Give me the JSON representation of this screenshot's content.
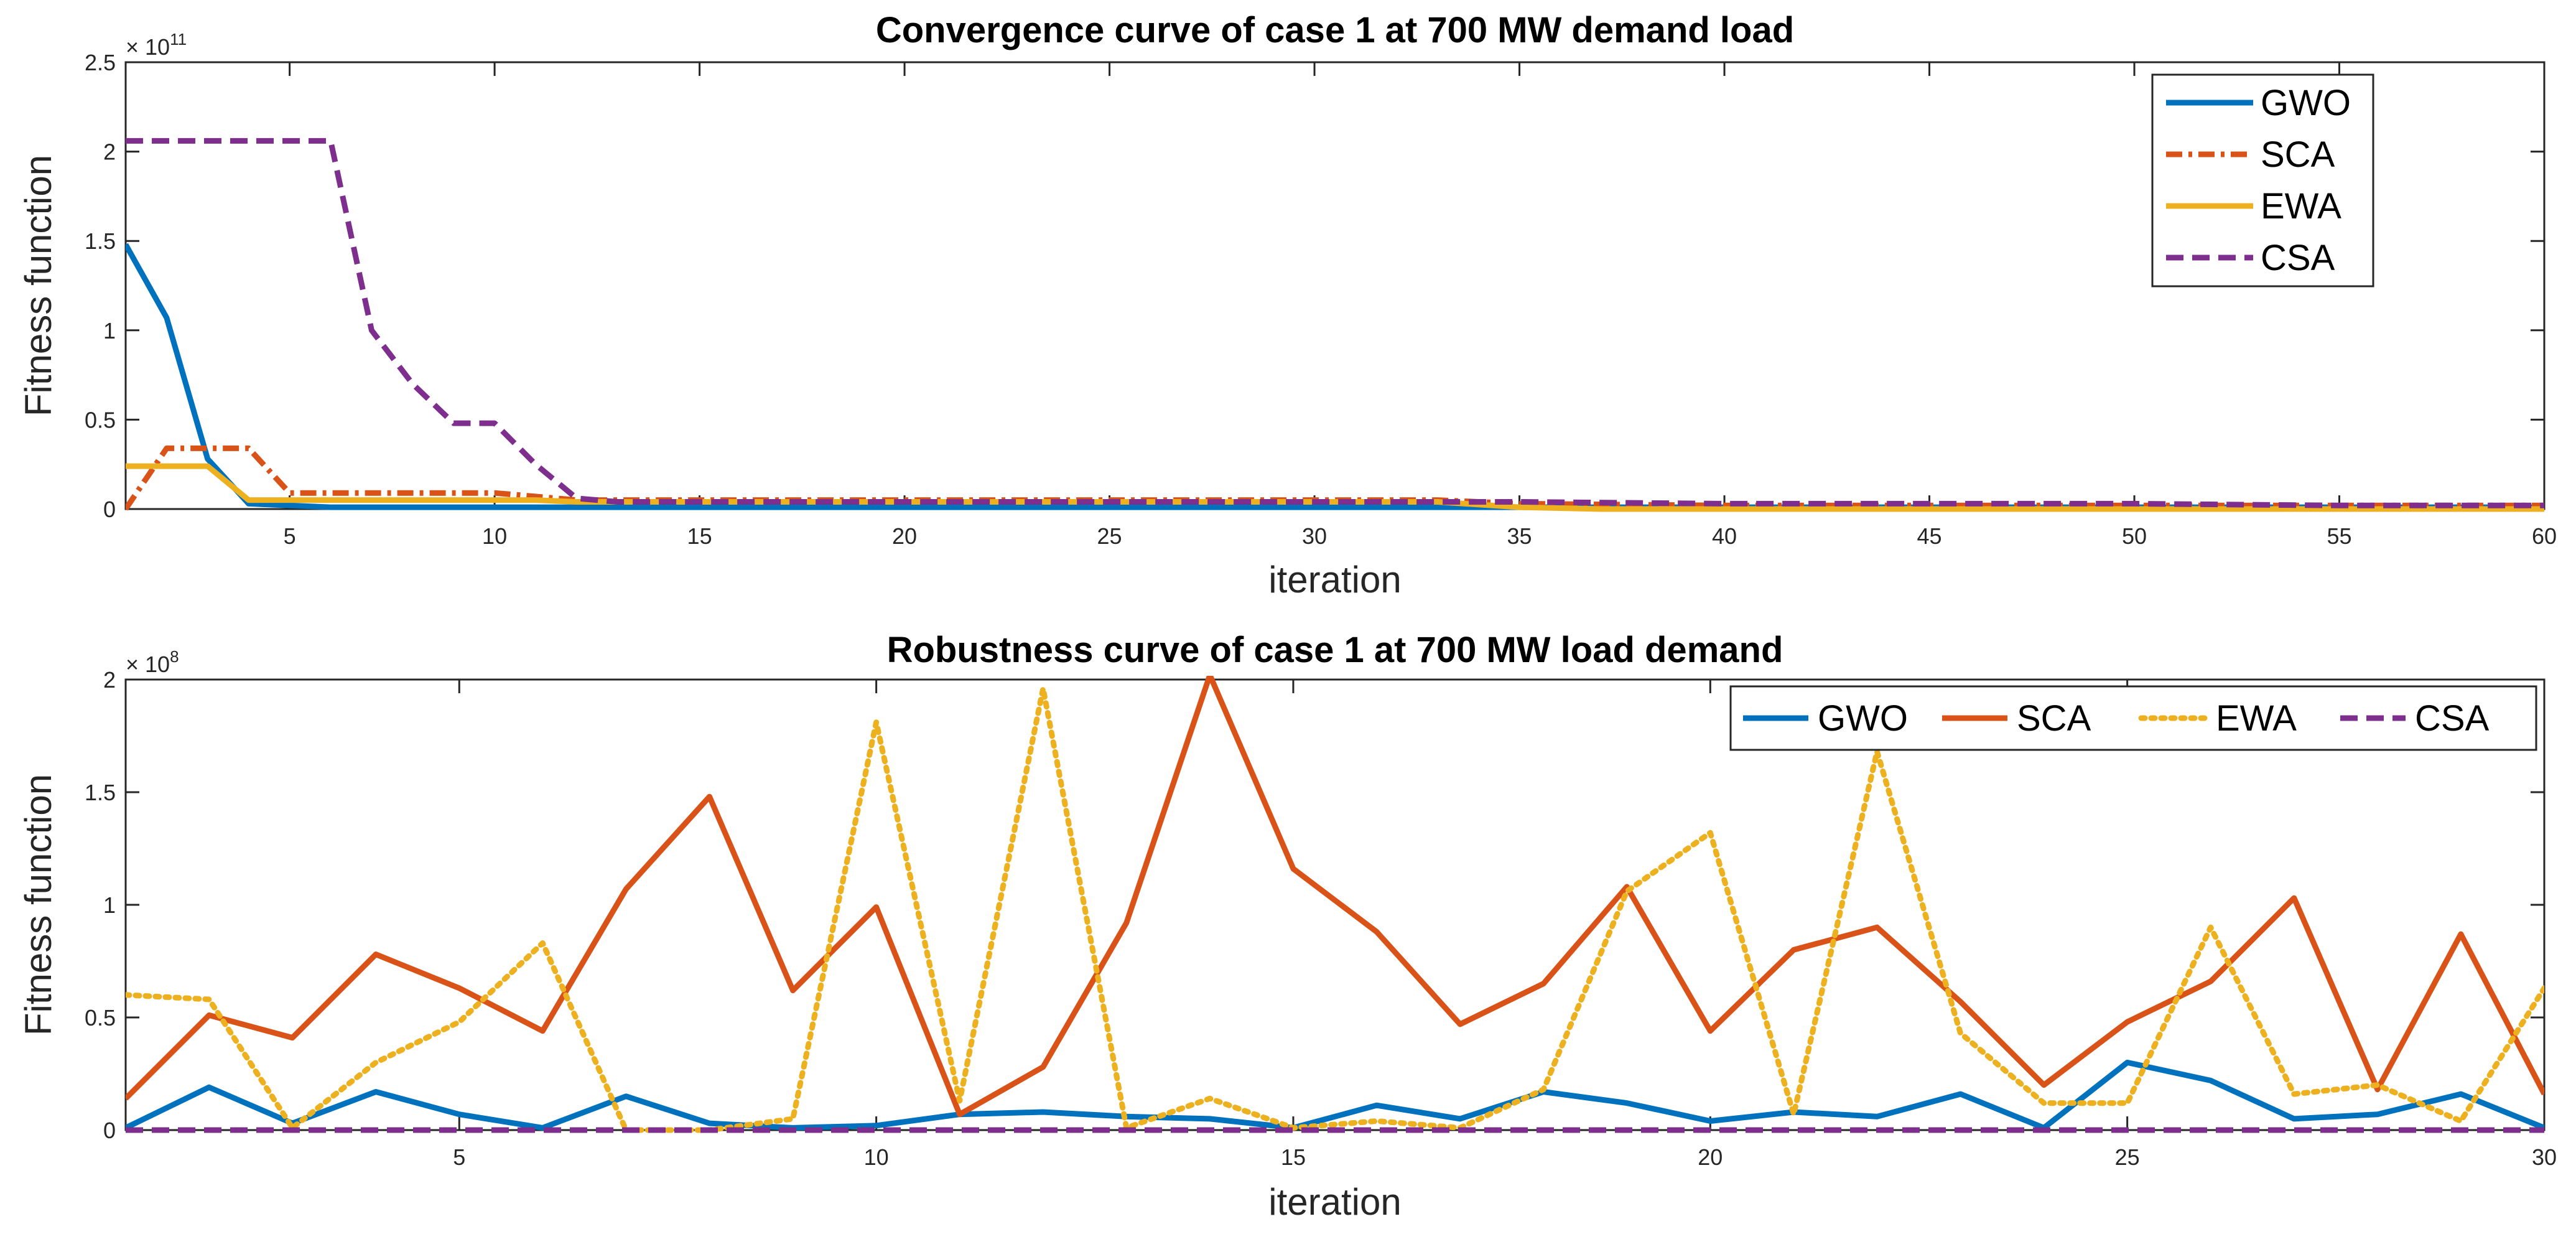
{
  "chart_data": [
    {
      "type": "line",
      "title": "Convergence curve of case 1 at 700 MW demand load",
      "xlabel": "iteration",
      "ylabel": "Fitness function",
      "exponent_base": "× 10",
      "exponent_power": "11",
      "xlim": [
        1,
        60
      ],
      "ylim": [
        0,
        2.5
      ],
      "xticks": [
        5,
        10,
        15,
        20,
        25,
        30,
        35,
        40,
        45,
        50,
        55,
        60
      ],
      "yticks": [
        0,
        0.5,
        1,
        1.5,
        2,
        2.5
      ],
      "ytick_labels": [
        "0",
        "0.5",
        "1",
        "1.5",
        "2",
        "2.5"
      ],
      "legend_position": "top-right",
      "legend_layout": "vertical",
      "series": [
        {
          "name": "GWO",
          "color": "#0072BD",
          "style": "solid",
          "x": [
            1,
            2,
            3,
            4,
            5,
            6,
            7,
            8,
            10,
            15,
            20,
            25,
            30,
            35,
            40,
            45,
            50,
            55,
            60
          ],
          "y": [
            1.48,
            1.07,
            0.28,
            0.03,
            0.02,
            0.01,
            0.01,
            0.01,
            0.01,
            0.01,
            0.01,
            0.01,
            0.01,
            0.01,
            0.01,
            0.01,
            0.01,
            0.01,
            0.01
          ]
        },
        {
          "name": "SCA",
          "color": "#D95319",
          "style": "dashdot",
          "x": [
            1,
            2,
            3,
            4,
            5,
            6,
            8,
            10,
            11,
            12,
            20,
            30,
            33,
            35,
            40,
            50,
            60
          ],
          "y": [
            0,
            0.34,
            0.34,
            0.34,
            0.09,
            0.09,
            0.09,
            0.09,
            0.07,
            0.05,
            0.05,
            0.05,
            0.05,
            0.03,
            0.02,
            0.02,
            0.02
          ]
        },
        {
          "name": "EWA",
          "color": "#EDB120",
          "style": "solid",
          "x": [
            1,
            2,
            3,
            4,
            5,
            10,
            11,
            12,
            20,
            30,
            33,
            35,
            37,
            40,
            50,
            60
          ],
          "y": [
            0.24,
            0.24,
            0.24,
            0.05,
            0.05,
            0.05,
            0.05,
            0.04,
            0.04,
            0.04,
            0.04,
            0.01,
            0,
            0,
            0,
            0
          ]
        },
        {
          "name": "CSA",
          "color": "#7E2F8E",
          "style": "dashed",
          "x": [
            1,
            2,
            3,
            4,
            5,
            6,
            7,
            8,
            9,
            10,
            11,
            12,
            13,
            20,
            30,
            33,
            35,
            40,
            50,
            55,
            60
          ],
          "y": [
            2.06,
            2.06,
            2.06,
            2.06,
            2.06,
            2.06,
            1.0,
            0.7,
            0.48,
            0.48,
            0.25,
            0.06,
            0.04,
            0.04,
            0.04,
            0.04,
            0.04,
            0.03,
            0.03,
            0.02,
            0.02
          ]
        }
      ]
    },
    {
      "type": "line",
      "title": "Robustness curve of case 1 at 700 MW load demand",
      "xlabel": "iteration",
      "ylabel": "Fitness function",
      "exponent_base": "× 10",
      "exponent_power": "8",
      "xlim": [
        1,
        30
      ],
      "ylim": [
        0,
        2
      ],
      "xticks": [
        5,
        10,
        15,
        20,
        25,
        30
      ],
      "yticks": [
        0,
        0.5,
        1,
        1.5,
        2
      ],
      "ytick_labels": [
        "0",
        "0.5",
        "1",
        "1.5",
        "2"
      ],
      "legend_position": "top-right",
      "legend_layout": "horizontal",
      "series": [
        {
          "name": "GWO",
          "color": "#0072BD",
          "style": "solid",
          "x": [
            1,
            2,
            3,
            4,
            5,
            6,
            7,
            8,
            9,
            10,
            11,
            12,
            13,
            14,
            15,
            16,
            17,
            18,
            19,
            20,
            21,
            22,
            23,
            24,
            25,
            26,
            27,
            28,
            29,
            30
          ],
          "y": [
            0.01,
            0.19,
            0.03,
            0.17,
            0.07,
            0.01,
            0.15,
            0.03,
            0.01,
            0.02,
            0.07,
            0.08,
            0.06,
            0.05,
            0.01,
            0.11,
            0.05,
            0.17,
            0.12,
            0.04,
            0.08,
            0.06,
            0.16,
            0.01,
            0.3,
            0.22,
            0.05,
            0.07,
            0.16,
            0.01
          ]
        },
        {
          "name": "SCA",
          "color": "#D95319",
          "style": "solid",
          "x": [
            1,
            2,
            3,
            4,
            5,
            6,
            7,
            8,
            9,
            10,
            11,
            12,
            13,
            14,
            15,
            16,
            17,
            18,
            19,
            20,
            21,
            22,
            23,
            24,
            25,
            26,
            27,
            28,
            29,
            30
          ],
          "y": [
            0.14,
            0.51,
            0.41,
            0.78,
            0.63,
            0.44,
            1.07,
            1.48,
            0.62,
            0.99,
            0.07,
            0.28,
            0.92,
            2.02,
            1.16,
            0.88,
            0.47,
            0.65,
            1.08,
            0.44,
            0.8,
            0.9,
            0.57,
            0.2,
            0.48,
            0.66,
            1.03,
            0.18,
            0.87,
            0.16
          ]
        },
        {
          "name": "EWA",
          "color": "#EDB120",
          "style": "dotted",
          "x": [
            1,
            2,
            3,
            4,
            5,
            6,
            7,
            8,
            9,
            10,
            11,
            12,
            13,
            14,
            15,
            16,
            17,
            18,
            19,
            20,
            21,
            22,
            23,
            24,
            25,
            26,
            27,
            28,
            29,
            30
          ],
          "y": [
            0.6,
            0.58,
            0.01,
            0.3,
            0.48,
            0.83,
            0.0,
            0.0,
            0.05,
            1.81,
            0.13,
            1.96,
            0.01,
            0.14,
            0.01,
            0.04,
            0.01,
            0.18,
            1.06,
            1.32,
            0.07,
            1.68,
            0.43,
            0.12,
            0.12,
            0.9,
            0.16,
            0.2,
            0.04,
            0.63
          ]
        },
        {
          "name": "CSA",
          "color": "#7E2F8E",
          "style": "dashed",
          "x": [
            1,
            30
          ],
          "y": [
            0.0,
            0.0
          ]
        }
      ]
    }
  ]
}
